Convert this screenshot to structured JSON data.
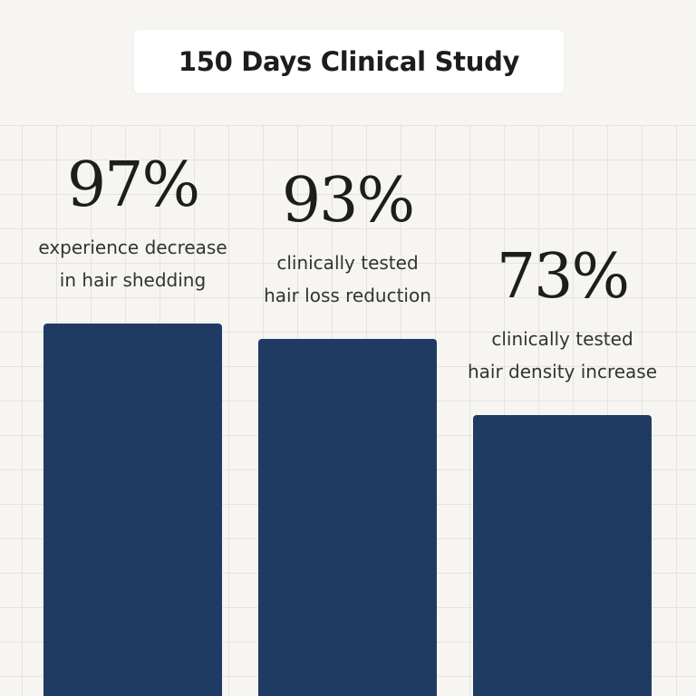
{
  "chart_data": {
    "type": "bar",
    "title": "150 Days Clinical Study",
    "unit": "%",
    "ylim": [
      0,
      115
    ],
    "bar_color": "#1f3b63",
    "categories": [
      "hair shedding",
      "hair loss reduction",
      "hair density increase"
    ],
    "values": [
      97,
      93,
      73
    ],
    "value_labels": [
      "97%",
      "93%",
      "73%"
    ],
    "captions": [
      {
        "line1": "experience decrease",
        "line2": "in hair shedding"
      },
      {
        "line1": "clinically tested",
        "line2": "hair loss reduction"
      },
      {
        "line1": "clinically tested",
        "line2": "hair density increase"
      }
    ]
  }
}
